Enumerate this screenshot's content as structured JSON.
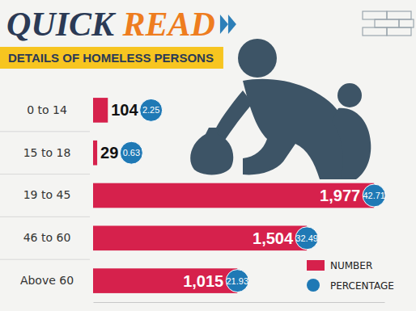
{
  "chart_data": {
    "type": "bar",
    "title": "QUICK READ",
    "subtitle": "DETAILS OF HOMELESS PERSONS",
    "orientation": "horizontal",
    "categories": [
      "0 to 14",
      "15 to 18",
      "19 to 45",
      "46 to 60",
      "Above 60"
    ],
    "series": [
      {
        "name": "NUMBER",
        "color": "#d6214c",
        "values": [
          104,
          29,
          1977,
          1504,
          1015
        ],
        "value_labels": [
          "104",
          "29",
          "1,977",
          "1,504",
          "1,015"
        ]
      },
      {
        "name": "PERCENTAGE",
        "color": "#1f79b5",
        "marker": "circle",
        "values": [
          2.25,
          0.63,
          42.71,
          32.49,
          21.93
        ]
      }
    ],
    "xlim": [
      0,
      2050
    ],
    "xticks": [],
    "data_labels": true,
    "tick_labels": "y",
    "legend": "bottom-right"
  }
}
